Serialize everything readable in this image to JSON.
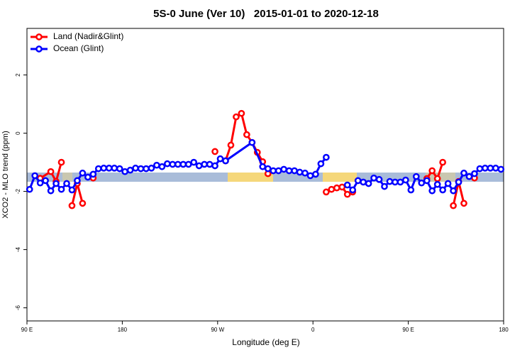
{
  "chart_data": {
    "type": "line",
    "title": "5S-0 June (Ver 10)   2015-01-01 to 2020-12-18",
    "x_label": "Longitude (deg E)",
    "y_label": "XCO2 - MLO trend (ppm)",
    "xlim": [
      90,
      540
    ],
    "ylim": [
      -6.45,
      3.6
    ],
    "xticks": [
      {
        "value": 90,
        "label": "90 E"
      },
      {
        "value": 180,
        "label": "180"
      },
      {
        "value": 270,
        "label": "90 W"
      },
      {
        "value": 360,
        "label": "0"
      },
      {
        "value": 450,
        "label": "90 E"
      },
      {
        "value": 540,
        "label": "180"
      }
    ],
    "yticks": [
      -6,
      -4,
      -2,
      0,
      2
    ],
    "legend": "top-left",
    "series": [
      {
        "name": "Land (Nadir&Glint)",
        "color": "#ff0000",
        "x": [
          102.5,
          112.5,
          117.5,
          122.5,
          127.5,
          132.5,
          137.5,
          142.5,
          147.5,
          152.5,
          262.5,
          267.5,
          272.5,
          277.5,
          282.5,
          287.5,
          292.5,
          297.5,
          302.5,
          307.5,
          312.5,
          317.5,
          347.5,
          372.5,
          377.5,
          382.5,
          387.5,
          392.5,
          397.5,
          437.5,
          467.5,
          472.5,
          477.5,
          482.5,
          487.5,
          492.5,
          497.5,
          502.5,
          507.5,
          512.5
        ],
        "values": [
          -1.55,
          -1.32,
          -1.66,
          -1.0,
          null,
          -2.49,
          -1.73,
          -2.41,
          null,
          -1.54,
          null,
          -0.63,
          null,
          -0.95,
          -0.41,
          0.56,
          0.68,
          -0.05,
          -0.32,
          -0.66,
          -0.98,
          -1.39,
          null,
          -2.02,
          -1.93,
          -1.88,
          -1.85,
          -2.1,
          -2.02,
          null,
          -1.56,
          -1.29,
          -1.56,
          -1.0,
          null,
          -2.49,
          -1.66,
          -2.41,
          null,
          -1.54
        ]
      },
      {
        "name": "Ocean (Glint)",
        "color": "#0000ff",
        "x": [
          92.5,
          97.5,
          102.5,
          107.5,
          112.5,
          117.5,
          122.5,
          127.5,
          132.5,
          137.5,
          142.5,
          147.5,
          152.5,
          157.5,
          162.5,
          167.5,
          172.5,
          177.5,
          182.5,
          187.5,
          192.5,
          197.5,
          202.5,
          207.5,
          212.5,
          217.5,
          222.5,
          227.5,
          232.5,
          237.5,
          242.5,
          247.5,
          252.5,
          257.5,
          262.5,
          267.5,
          272.5,
          277.5,
          302.5,
          312.5,
          317.5,
          322.5,
          327.5,
          332.5,
          337.5,
          342.5,
          347.5,
          352.5,
          357.5,
          362.5,
          367.5,
          372.5,
          382.5,
          392.5,
          397.5,
          402.5,
          407.5,
          412.5,
          417.5,
          422.5,
          427.5,
          432.5,
          437.5,
          442.5,
          447.5,
          452.5,
          457.5,
          462.5,
          467.5,
          472.5,
          477.5,
          482.5,
          487.5,
          492.5,
          497.5,
          502.5,
          507.5,
          512.5,
          517.5,
          522.5,
          527.5,
          532.5,
          537.5
        ],
        "values": [
          -1.93,
          -1.46,
          -1.71,
          -1.63,
          -1.98,
          -1.73,
          -1.93,
          -1.73,
          -1.95,
          -1.63,
          -1.37,
          -1.51,
          -1.41,
          -1.22,
          -1.2,
          -1.2,
          -1.2,
          -1.22,
          -1.32,
          -1.27,
          -1.2,
          -1.22,
          -1.22,
          -1.2,
          -1.1,
          -1.15,
          -1.05,
          -1.07,
          -1.07,
          -1.07,
          -1.07,
          -1.0,
          -1.12,
          -1.07,
          -1.07,
          -1.12,
          -0.88,
          -0.95,
          -0.32,
          -1.15,
          -1.22,
          -1.29,
          -1.29,
          -1.24,
          -1.29,
          -1.29,
          -1.34,
          -1.37,
          -1.46,
          -1.41,
          -1.05,
          -0.83,
          null,
          -1.78,
          -1.95,
          -1.63,
          -1.68,
          -1.73,
          -1.54,
          -1.59,
          -1.83,
          -1.66,
          -1.68,
          -1.68,
          -1.61,
          -1.95,
          -1.49,
          -1.71,
          -1.63,
          -1.98,
          -1.76,
          -1.95,
          -1.73,
          -1.98,
          -1.68,
          -1.37,
          -1.49,
          -1.39,
          -1.22,
          -1.2,
          -1.2,
          -1.2,
          -1.24
        ]
      }
    ]
  }
}
